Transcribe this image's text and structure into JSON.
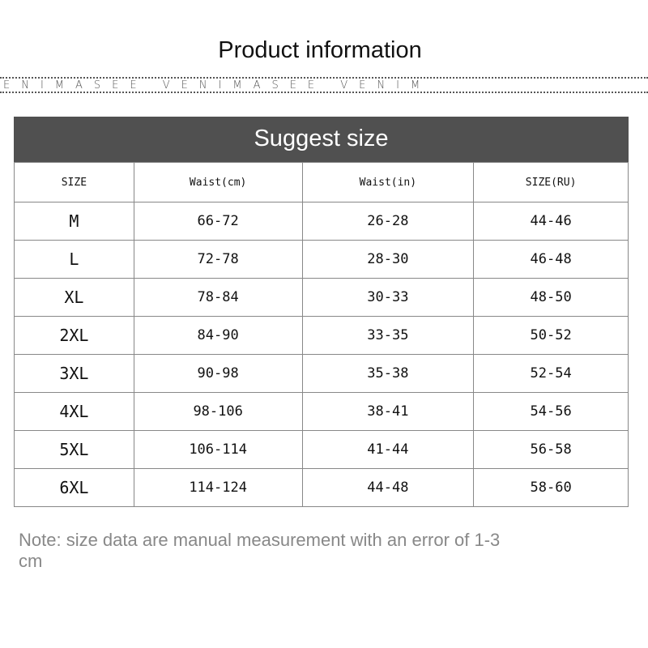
{
  "title": "Product information",
  "brand_band": "ENIMASEE   VENIMASEE   VENIM",
  "table_title": "Suggest size",
  "columns": [
    "SIZE",
    "Waist(cm)",
    "Waist(in)",
    "SIZE(RU)"
  ],
  "rows": [
    [
      "M",
      "66-72",
      "26-28",
      "44-46"
    ],
    [
      "L",
      "72-78",
      "28-30",
      "46-48"
    ],
    [
      "XL",
      "78-84",
      "30-33",
      "48-50"
    ],
    [
      "2XL",
      "84-90",
      "33-35",
      "50-52"
    ],
    [
      "3XL",
      "90-98",
      "35-38",
      "52-54"
    ],
    [
      "4XL",
      "98-106",
      "38-41",
      "54-56"
    ],
    [
      "5XL",
      "106-114",
      "41-44",
      "56-58"
    ],
    [
      "6XL",
      "114-124",
      "44-48",
      "58-60"
    ]
  ],
  "note": "Note: size data are manual measurement with an error of 1-3 cm"
}
